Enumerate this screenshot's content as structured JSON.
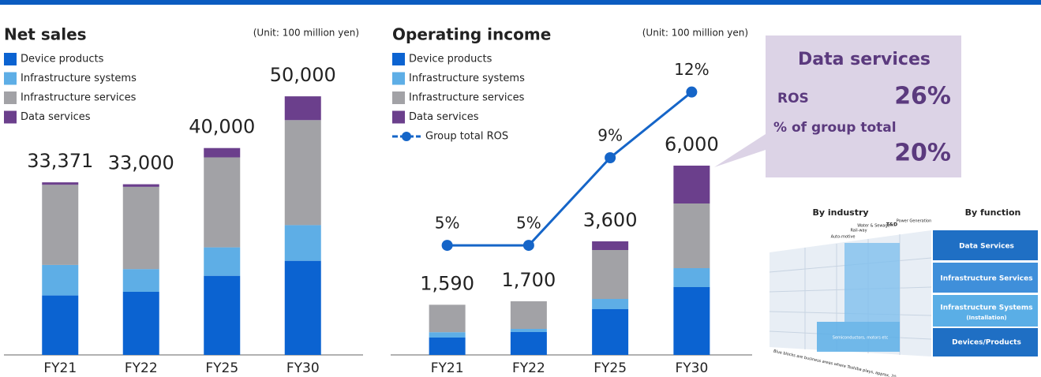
{
  "chart_data": [
    {
      "type": "bar",
      "stacked": true,
      "title": "Net sales",
      "unit": "(Unit: 100 million yen)",
      "categories": [
        "FY21",
        "FY22",
        "FY25",
        "FY30"
      ],
      "series": [
        {
          "name": "Device products",
          "color": "#0b63d1",
          "values": [
            11500,
            12200,
            15300,
            18200
          ]
        },
        {
          "name": "Infrastructure systems",
          "color": "#5eaee6",
          "values": [
            5900,
            4400,
            5500,
            6900
          ]
        },
        {
          "name": "Infrastructure services",
          "color": "#a2a2a6",
          "values": [
            15500,
            15900,
            17400,
            20300
          ]
        },
        {
          "name": "Data services",
          "color": "#6b3f8c",
          "values": [
            471,
            500,
            1800,
            4600
          ]
        }
      ],
      "totals": [
        33371,
        33000,
        40000,
        50000
      ],
      "total_labels": [
        "33,371",
        "33,000",
        "40,000",
        "50,000"
      ],
      "ylim": [
        0,
        61000
      ]
    },
    {
      "type": "bar",
      "stacked": true,
      "title": "Operating income",
      "unit": "(Unit: 100 million yen)",
      "categories": [
        "FY21",
        "FY22",
        "FY25",
        "FY30"
      ],
      "series": [
        {
          "name": "Device products",
          "color": "#0b63d1",
          "values": [
            550,
            725,
            1450,
            2150
          ]
        },
        {
          "name": "Infrastructure systems",
          "color": "#5eaee6",
          "values": [
            170,
            100,
            325,
            600
          ]
        },
        {
          "name": "Infrastructure services",
          "color": "#a2a2a6",
          "values": [
            870,
            875,
            1550,
            2050
          ]
        },
        {
          "name": "Data services",
          "color": "#6b3f8c",
          "values": [
            0,
            0,
            275,
            1200
          ]
        },
        {
          "name": "Group total ROS",
          "type": "line",
          "axis": "y2",
          "color": "#1565c8",
          "values": [
            5,
            5,
            9,
            12
          ],
          "value_labels": [
            "5%",
            "5%",
            "9%",
            "12%"
          ]
        }
      ],
      "totals": [
        1590,
        1700,
        3600,
        6000
      ],
      "total_labels": [
        "1,590",
        "1,700",
        "3,600",
        "6,000"
      ],
      "ylim": [
        0,
        10000
      ],
      "y2lim": [
        0,
        14.4
      ]
    }
  ],
  "callout": {
    "title": "Data services",
    "ros_label": "ROS",
    "ros_value": "26%",
    "share_label": "% of group total",
    "share_value": "20%"
  },
  "diagram": {
    "left_heading": "By industry",
    "right_heading": "By function",
    "industries": [
      "Auto-motive",
      "Rail-way",
      "Water & Sewage",
      "T&D",
      "Power Generation"
    ],
    "functions": [
      "Data Services",
      "Infrastructure Services",
      "Infrastructure Systems",
      "Devices/Products"
    ],
    "sublabel": "(Installation)",
    "highlight": "Semiconductors, motors etc",
    "note": "Blue blocks are business areas where Toshiba plays, approx. 20"
  }
}
